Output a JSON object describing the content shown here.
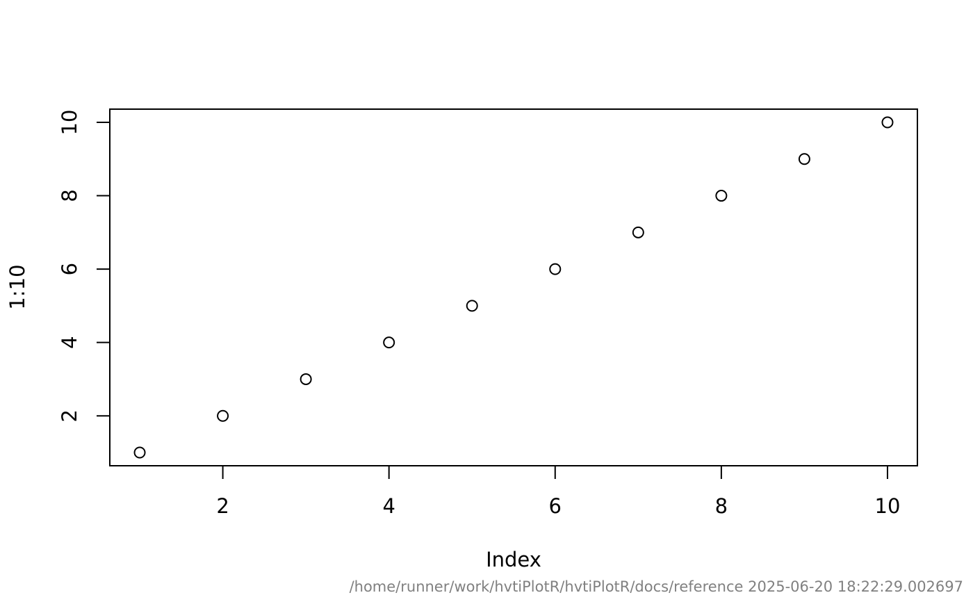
{
  "chart_data": {
    "type": "scatter",
    "title": "",
    "xlabel": "Index",
    "ylabel": "1:10",
    "x": [
      1,
      2,
      3,
      4,
      5,
      6,
      7,
      8,
      9,
      10
    ],
    "y": [
      1,
      2,
      3,
      4,
      5,
      6,
      7,
      8,
      9,
      10
    ],
    "xlim": [
      0.64,
      10.36
    ],
    "ylim": [
      0.64,
      10.36
    ],
    "x_ticks": [
      2,
      4,
      6,
      8,
      10
    ],
    "y_ticks": [
      2,
      4,
      6,
      8,
      10
    ],
    "x_tick_labels": [
      "2",
      "4",
      "6",
      "8",
      "10"
    ],
    "y_tick_labels": [
      "2",
      "4",
      "6",
      "8",
      "10"
    ],
    "marker": "open-circle",
    "point_color": "#000000",
    "grid": false,
    "legend": "none"
  },
  "footer": {
    "text": "/home/runner/work/hvtiPlotR/hvtiPlotR/docs/reference 2025-06-20 18:22:29.002697",
    "color": "#808080"
  }
}
